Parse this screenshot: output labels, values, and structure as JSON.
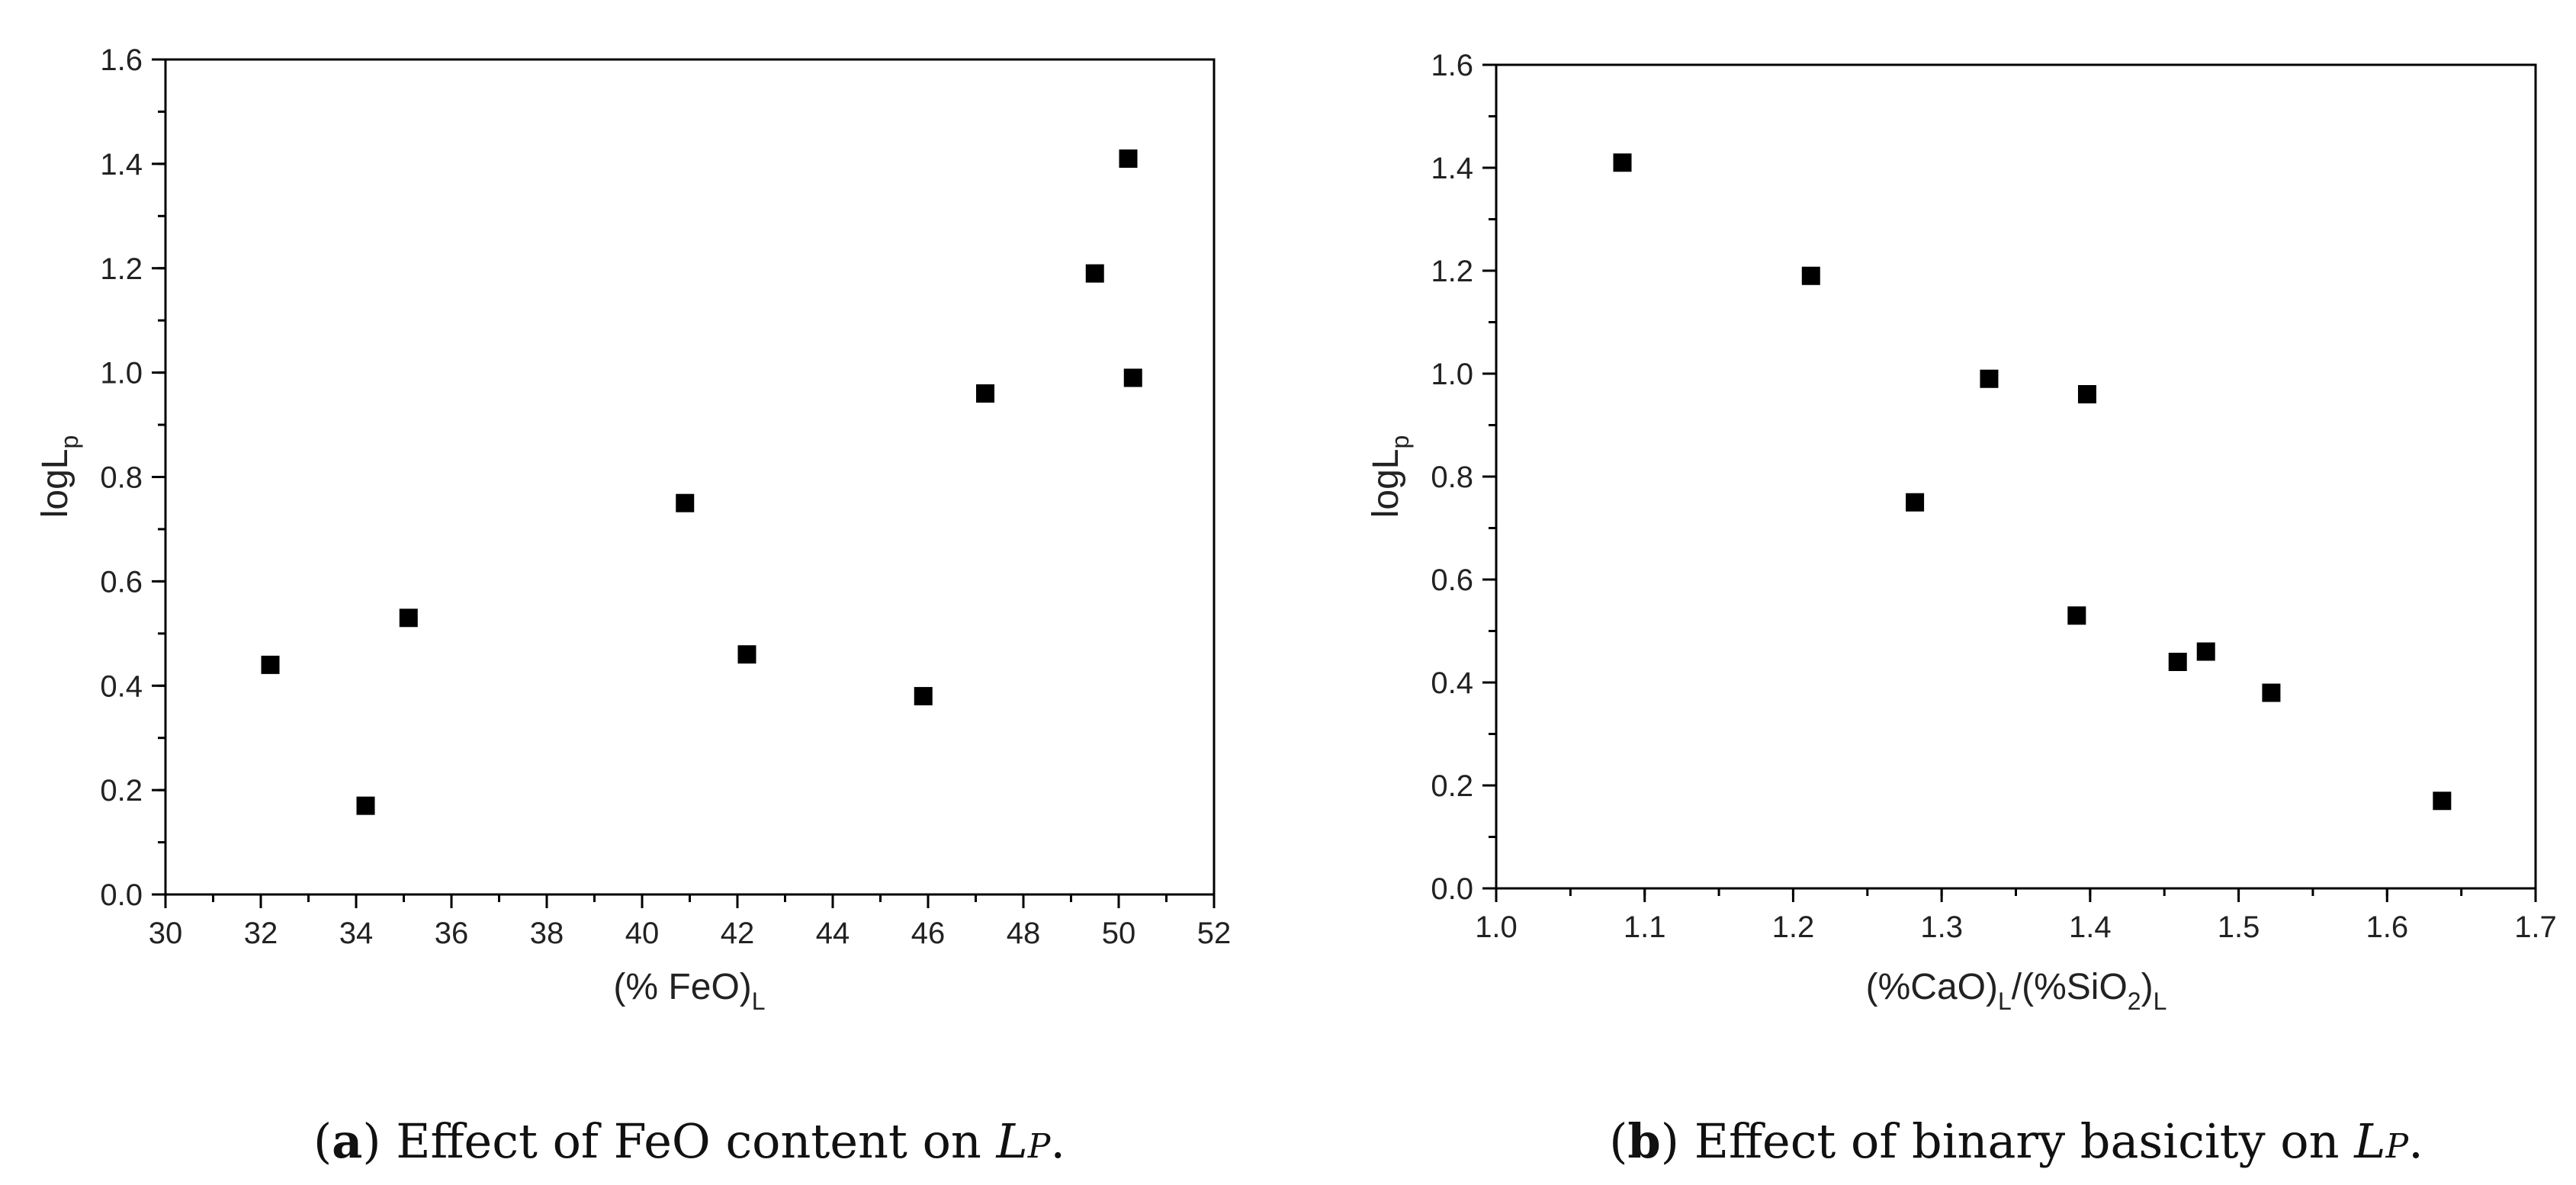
{
  "chart_data": [
    {
      "id": "a",
      "type": "scatter",
      "xlabel": {
        "main": "(% FeO)",
        "sub": "L"
      },
      "ylabel": {
        "main": "logL",
        "sub": "p"
      },
      "xlim": [
        30,
        52
      ],
      "ylim": [
        0.0,
        1.6
      ],
      "xticks": [
        30,
        32,
        34,
        36,
        38,
        40,
        42,
        44,
        46,
        48,
        50,
        52
      ],
      "xtick_labels": [
        "30",
        "32",
        "34",
        "36",
        "38",
        "40",
        "42",
        "44",
        "46",
        "48",
        "50",
        "52"
      ],
      "yticks": [
        0.0,
        0.2,
        0.4,
        0.6,
        0.8,
        1.0,
        1.2,
        1.4,
        1.6
      ],
      "ytick_labels": [
        "0.0",
        "0.2",
        "0.4",
        "0.6",
        "0.8",
        "1.0",
        "1.2",
        "1.4",
        "1.6"
      ],
      "x_minor": 1,
      "y_minor": 0.1,
      "grid": false,
      "points": [
        {
          "x": 32.2,
          "y": 0.44
        },
        {
          "x": 34.2,
          "y": 0.17
        },
        {
          "x": 35.1,
          "y": 0.53
        },
        {
          "x": 40.9,
          "y": 0.75
        },
        {
          "x": 42.2,
          "y": 0.46
        },
        {
          "x": 45.9,
          "y": 0.38
        },
        {
          "x": 47.2,
          "y": 0.96
        },
        {
          "x": 49.5,
          "y": 1.19
        },
        {
          "x": 50.2,
          "y": 1.41
        },
        {
          "x": 50.3,
          "y": 0.99
        }
      ],
      "caption": {
        "label": "a",
        "text": " Effect of FeO content on ",
        "symbol": "L",
        "symbol_sub": "P",
        "end": "."
      }
    },
    {
      "id": "b",
      "type": "scatter",
      "xlabel": {
        "p1": "(%CaO)",
        "s1": "L",
        "p2": "/(%SiO",
        "s2": "2",
        "p3": ")",
        "s3": "L"
      },
      "ylabel": {
        "main": "logL",
        "sub": "p"
      },
      "xlim": [
        1.0,
        1.7
      ],
      "ylim": [
        0.0,
        1.6
      ],
      "xticks": [
        1.0,
        1.1,
        1.2,
        1.3,
        1.4,
        1.5,
        1.6,
        1.7
      ],
      "xtick_labels": [
        "1.0",
        "1.1",
        "1.2",
        "1.3",
        "1.4",
        "1.5",
        "1.6",
        "1.7"
      ],
      "yticks": [
        0.0,
        0.2,
        0.4,
        0.6,
        0.8,
        1.0,
        1.2,
        1.4,
        1.6
      ],
      "ytick_labels": [
        "0.0",
        "0.2",
        "0.4",
        "0.6",
        "0.8",
        "1.0",
        "1.2",
        "1.4",
        "1.6"
      ],
      "x_minor": 0.05,
      "y_minor": 0.1,
      "grid": false,
      "points": [
        {
          "x": 1.085,
          "y": 1.41
        },
        {
          "x": 1.212,
          "y": 1.19
        },
        {
          "x": 1.282,
          "y": 0.75
        },
        {
          "x": 1.332,
          "y": 0.99
        },
        {
          "x": 1.391,
          "y": 0.53
        },
        {
          "x": 1.398,
          "y": 0.96
        },
        {
          "x": 1.459,
          "y": 0.44
        },
        {
          "x": 1.478,
          "y": 0.46
        },
        {
          "x": 1.522,
          "y": 0.38
        },
        {
          "x": 1.637,
          "y": 0.17
        }
      ],
      "caption": {
        "label": "b",
        "text": " Effect of binary basicity on ",
        "symbol": "L",
        "symbol_sub": "P",
        "end": "."
      }
    }
  ]
}
